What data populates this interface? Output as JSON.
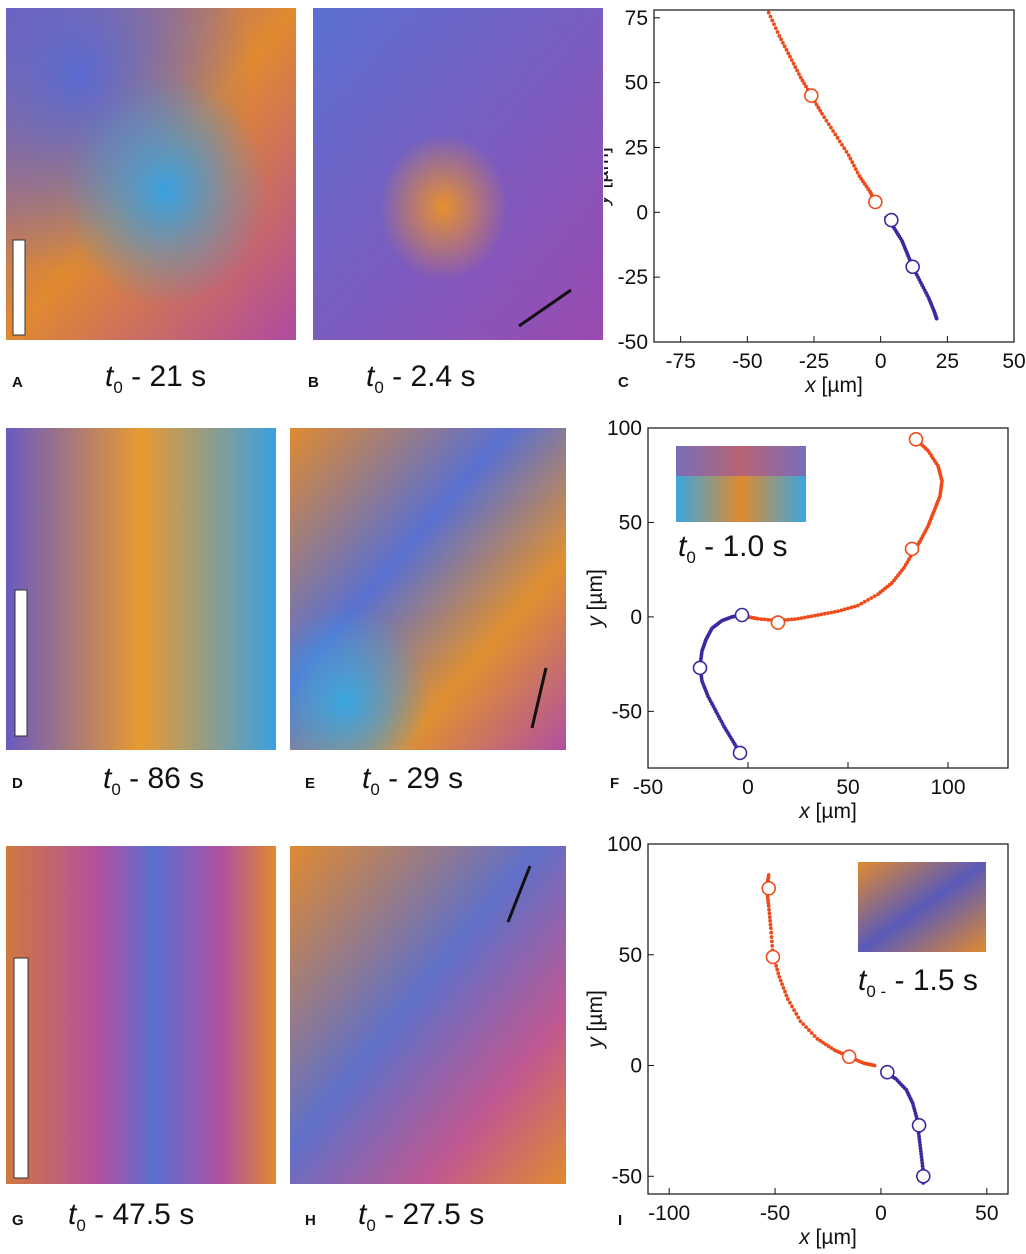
{
  "panels": {
    "A": {
      "letter": "A",
      "t": "t",
      "sub": "0",
      "rest": "- 21 s"
    },
    "B": {
      "letter": "B",
      "t": "t",
      "sub": "0",
      "rest": "- 2.4 s"
    },
    "C": {
      "letter": "C"
    },
    "D": {
      "letter": "D",
      "t": "t",
      "sub": "0",
      "rest": "- 86 s"
    },
    "E": {
      "letter": "E",
      "t": "t",
      "sub": "0",
      "rest": "- 29 s"
    },
    "F": {
      "letter": "F",
      "inset_t": "t",
      "inset_sub": "0",
      "inset_rest": "- 1.0 s"
    },
    "G": {
      "letter": "G",
      "t": "t",
      "sub": "0",
      "rest": "- 47.5 s"
    },
    "H": {
      "letter": "H",
      "t": "t",
      "sub": "0",
      "rest": "- 27.5 s"
    },
    "I": {
      "letter": "I",
      "inset_t": "t",
      "inset_sub": "0 -",
      "inset_rest": "- 1.5 s"
    }
  },
  "colors": {
    "red": "#f04a1a",
    "blue": "#3a2aa0",
    "orange": "#e08a30",
    "magenta": "#b040a0",
    "cyan": "#3aa6e0"
  },
  "chart_data": [
    {
      "id": "C",
      "type": "scatter",
      "xlabel_var": "x",
      "xlabel_unit": " [µm]",
      "ylabel_var": "y",
      "ylabel_unit": " [µm]",
      "xlim": [
        -85,
        50
      ],
      "ylim": [
        -50,
        78
      ],
      "xticks": [
        -75,
        -50,
        -25,
        0,
        25,
        50
      ],
      "yticks": [
        -50,
        -25,
        0,
        25,
        50,
        75
      ],
      "series": [
        {
          "name": "red",
          "color": "#f04a1a",
          "points": [
            [
              -42,
              77
            ],
            [
              -38,
              68
            ],
            [
              -34,
              60
            ],
            [
              -30,
              52
            ],
            [
              -26,
              45
            ],
            [
              -22,
              38
            ],
            [
              -17,
              30
            ],
            [
              -12,
              22
            ],
            [
              -8,
              14
            ],
            [
              -4,
              8
            ],
            [
              -2,
              4
            ]
          ],
          "markers": [
            [
              -26,
              45
            ],
            [
              -2,
              4
            ]
          ]
        },
        {
          "name": "blue",
          "color": "#3a2aa0",
          "points": [
            [
              2,
              -2
            ],
            [
              5,
              -6
            ],
            [
              8,
              -11
            ],
            [
              10,
              -16
            ],
            [
              12,
              -21
            ],
            [
              15,
              -27
            ],
            [
              18,
              -33
            ],
            [
              20,
              -38
            ],
            [
              21,
              -41
            ]
          ],
          "markers": [
            [
              4,
              -3
            ],
            [
              12,
              -21
            ]
          ]
        }
      ]
    },
    {
      "id": "F",
      "type": "scatter",
      "xlabel_var": "x",
      "xlabel_unit": " [µm]",
      "ylabel_var": "y",
      "ylabel_unit": " [µm]",
      "xlim": [
        -50,
        130
      ],
      "ylim": [
        -80,
        100
      ],
      "xticks": [
        -50,
        0,
        50,
        100
      ],
      "yticks": [
        -50,
        0,
        50,
        100
      ],
      "series": [
        {
          "name": "red",
          "color": "#f04a1a",
          "points": [
            [
              84,
              94
            ],
            [
              90,
              88
            ],
            [
              95,
              80
            ],
            [
              97,
              72
            ],
            [
              96,
              64
            ],
            [
              93,
              56
            ],
            [
              90,
              48
            ],
            [
              86,
              40
            ],
            [
              83,
              35
            ],
            [
              78,
              26
            ],
            [
              72,
              18
            ],
            [
              65,
              12
            ],
            [
              55,
              6
            ],
            [
              45,
              3
            ],
            [
              35,
              1
            ],
            [
              25,
              -1
            ],
            [
              15,
              -2
            ],
            [
              5,
              -1
            ],
            [
              0,
              0
            ]
          ],
          "markers": [
            [
              84,
              94
            ],
            [
              82,
              36
            ],
            [
              15,
              -3
            ]
          ]
        },
        {
          "name": "blue",
          "color": "#3a2aa0",
          "points": [
            [
              -3,
              1
            ],
            [
              -8,
              0
            ],
            [
              -13,
              -2
            ],
            [
              -18,
              -6
            ],
            [
              -21,
              -12
            ],
            [
              -23,
              -18
            ],
            [
              -24,
              -26
            ],
            [
              -23,
              -34
            ],
            [
              -20,
              -42
            ],
            [
              -16,
              -50
            ],
            [
              -12,
              -58
            ],
            [
              -8,
              -65
            ],
            [
              -4,
              -72
            ]
          ],
          "markers": [
            [
              -3,
              1
            ],
            [
              -24,
              -27
            ],
            [
              -4,
              -72
            ]
          ]
        }
      ]
    },
    {
      "id": "I",
      "type": "scatter",
      "xlabel_var": "x",
      "xlabel_unit": " [µm]",
      "ylabel_var": "y",
      "ylabel_unit": " [µm]",
      "xlim": [
        -110,
        60
      ],
      "ylim": [
        -58,
        100
      ],
      "xticks": [
        -100,
        -50,
        0,
        50
      ],
      "yticks": [
        -50,
        0,
        50,
        100
      ],
      "series": [
        {
          "name": "red",
          "color": "#f04a1a",
          "points": [
            [
              -53,
              86
            ],
            [
              -54,
              80
            ],
            [
              -53,
              72
            ],
            [
              -52,
              62
            ],
            [
              -51,
              50
            ],
            [
              -48,
              40
            ],
            [
              -44,
              30
            ],
            [
              -38,
              20
            ],
            [
              -30,
              12
            ],
            [
              -22,
              7
            ],
            [
              -15,
              4
            ],
            [
              -8,
              1
            ],
            [
              -3,
              0
            ]
          ],
          "markers": [
            [
              -53,
              80
            ],
            [
              -51,
              49
            ],
            [
              -15,
              4
            ]
          ]
        },
        {
          "name": "blue",
          "color": "#3a2aa0",
          "points": [
            [
              2,
              -3
            ],
            [
              7,
              -6
            ],
            [
              12,
              -11
            ],
            [
              15,
              -17
            ],
            [
              17,
              -24
            ],
            [
              18,
              -32
            ],
            [
              19,
              -40
            ],
            [
              20,
              -48
            ],
            [
              20,
              -53
            ]
          ],
          "markers": [
            [
              3,
              -3
            ],
            [
              18,
              -27
            ],
            [
              20,
              -50
            ]
          ]
        }
      ]
    }
  ]
}
